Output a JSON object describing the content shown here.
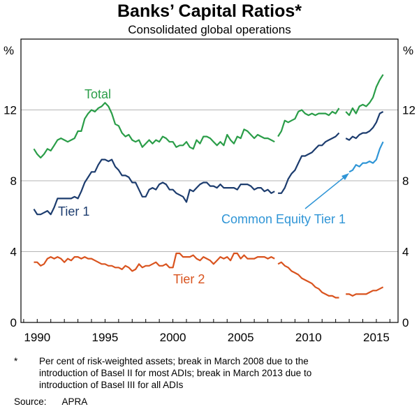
{
  "chart_data": {
    "type": "line",
    "title": "Banks’ Capital Ratios*",
    "subtitle": "Consolidated global operations",
    "ylabel_left": "%",
    "ylabel_right": "%",
    "ylim": [
      0,
      16
    ],
    "yticks": [
      0,
      4,
      8,
      12
    ],
    "xlim": [
      1988.8,
      2016.6
    ],
    "xticks": [
      1990,
      1995,
      2000,
      2005,
      2010,
      2015
    ],
    "colors": {
      "total": "#2a9d48",
      "tier1": "#1c3c6e",
      "cet1": "#2f95d6",
      "tier2": "#d9531e",
      "grid": "#b5b5b5"
    },
    "series": [
      {
        "name": "Total",
        "segments": [
          {
            "x": [
              1989.75,
              1990,
              1990.25,
              1990.5,
              1990.75,
              1991,
              1991.25,
              1991.5,
              1991.75,
              1992,
              1992.25,
              1992.5,
              1992.75,
              1993,
              1993.25,
              1993.5,
              1993.75,
              1994,
              1994.25,
              1994.5,
              1994.75,
              1995,
              1995.25,
              1995.5,
              1995.75,
              1996,
              1996.25,
              1996.5,
              1996.75,
              1997,
              1997.25,
              1997.5,
              1997.75,
              1998,
              1998.25,
              1998.5,
              1998.75,
              1999,
              1999.25,
              1999.5,
              1999.75,
              2000,
              2000.25,
              2000.5,
              2000.75,
              2001,
              2001.25,
              2001.5,
              2001.75,
              2002,
              2002.25,
              2002.5,
              2002.75,
              2003,
              2003.25,
              2003.5,
              2003.75,
              2004,
              2004.25,
              2004.5,
              2004.75,
              2005,
              2005.25,
              2005.5,
              2005.75,
              2006,
              2006.25,
              2006.5,
              2006.75,
              2007,
              2007.25,
              2007.5
            ],
            "y": [
              9.8,
              9.5,
              9.3,
              9.5,
              9.8,
              9.7,
              10.0,
              10.3,
              10.4,
              10.3,
              10.2,
              10.3,
              10.4,
              10.8,
              10.8,
              11.5,
              11.8,
              12.0,
              11.9,
              12.1,
              12.2,
              12.4,
              12.2,
              11.8,
              11.2,
              11.1,
              10.7,
              10.5,
              10.6,
              10.3,
              10.2,
              10.3,
              9.9,
              10.1,
              10.3,
              10.1,
              10.3,
              10.2,
              10.5,
              10.4,
              10.2,
              10.2,
              9.9,
              10.0,
              10.0,
              10.2,
              9.9,
              9.8,
              10.3,
              10.1,
              10.5,
              10.5,
              10.4,
              10.2,
              10.0,
              10.2,
              10.0,
              10.6,
              10.3,
              10.1,
              10.5,
              10.4,
              10.9,
              10.8,
              10.6,
              10.4,
              10.6,
              10.5,
              10.4,
              10.4,
              10.3,
              10.2
            ]
          },
          {
            "x": [
              2007.75,
              2008,
              2008.25,
              2008.5,
              2008.75,
              2009,
              2009.25,
              2009.5,
              2009.75,
              2010,
              2010.25,
              2010.5,
              2010.75,
              2011,
              2011.25,
              2011.5,
              2011.75,
              2012,
              2012.25
            ],
            "y": [
              10.5,
              10.8,
              11.4,
              11.3,
              11.4,
              11.5,
              11.9,
              12.0,
              11.8,
              11.7,
              11.8,
              11.7,
              11.8,
              11.8,
              11.8,
              11.7,
              11.9,
              11.8,
              12.1
            ]
          },
          {
            "x": [
              2012.75,
              2013,
              2013.25,
              2013.5,
              2013.75,
              2014,
              2014.25,
              2014.5,
              2014.75,
              2015,
              2015.25,
              2015.5
            ],
            "y": [
              11.9,
              11.7,
              12.1,
              11.8,
              12.2,
              12.3,
              12.2,
              12.4,
              12.7,
              13.3,
              13.7,
              14.0
            ]
          }
        ]
      },
      {
        "name": "Tier 1",
        "segments": [
          {
            "x": [
              1989.75,
              1990,
              1990.25,
              1990.5,
              1990.75,
              1991,
              1991.25,
              1991.5,
              1991.75,
              1992,
              1992.25,
              1992.5,
              1992.75,
              1993,
              1993.25,
              1993.5,
              1993.75,
              1994,
              1994.25,
              1994.5,
              1994.75,
              1995,
              1995.25,
              1995.5,
              1995.75,
              1996,
              1996.25,
              1996.5,
              1996.75,
              1997,
              1997.25,
              1997.5,
              1997.75,
              1998,
              1998.25,
              1998.5,
              1998.75,
              1999,
              1999.25,
              1999.5,
              1999.75,
              2000,
              2000.25,
              2000.5,
              2000.75,
              2001,
              2001.25,
              2001.5,
              2001.75,
              2002,
              2002.25,
              2002.5,
              2002.75,
              2003,
              2003.25,
              2003.5,
              2003.75,
              2004,
              2004.25,
              2004.5,
              2004.75,
              2005,
              2005.25,
              2005.5,
              2005.75,
              2006,
              2006.25,
              2006.5,
              2006.75,
              2007,
              2007.25,
              2007.5
            ],
            "y": [
              6.4,
              6.1,
              6.1,
              6.2,
              6.3,
              6.1,
              6.5,
              7.0,
              7.0,
              7.0,
              7.0,
              7.0,
              7.1,
              7.0,
              7.4,
              7.9,
              8.2,
              8.5,
              8.5,
              8.9,
              9.2,
              9.2,
              9.1,
              9.2,
              8.8,
              8.6,
              8.3,
              8.3,
              8.2,
              7.9,
              7.9,
              7.5,
              7.1,
              7.1,
              7.5,
              7.6,
              7.5,
              7.8,
              7.9,
              7.8,
              7.5,
              7.5,
              7.3,
              7.2,
              7.1,
              6.8,
              7.5,
              7.4,
              7.6,
              7.8,
              7.9,
              7.9,
              7.7,
              7.7,
              7.6,
              7.8,
              7.6,
              7.6,
              7.6,
              7.6,
              7.5,
              7.8,
              7.8,
              7.8,
              7.7,
              7.5,
              7.6,
              7.6,
              7.4,
              7.5,
              7.3,
              7.4
            ]
          },
          {
            "x": [
              2007.75,
              2008,
              2008.25,
              2008.5,
              2008.75,
              2009,
              2009.25,
              2009.5,
              2009.75,
              2010,
              2010.25,
              2010.5,
              2010.75,
              2011,
              2011.25,
              2011.5,
              2011.75,
              2012,
              2012.25
            ],
            "y": [
              7.3,
              7.3,
              7.6,
              8.1,
              8.4,
              8.6,
              9.0,
              9.4,
              9.4,
              9.5,
              9.6,
              9.8,
              10.0,
              10.0,
              10.2,
              10.3,
              10.4,
              10.5,
              10.7
            ]
          },
          {
            "x": [
              2012.75,
              2013,
              2013.25,
              2013.5,
              2013.75,
              2014,
              2014.25,
              2014.5,
              2014.75,
              2015,
              2015.25,
              2015.5
            ],
            "y": [
              10.4,
              10.3,
              10.5,
              10.4,
              10.6,
              10.7,
              10.7,
              10.8,
              11.0,
              11.3,
              11.8,
              11.9
            ]
          }
        ]
      },
      {
        "name": "Common Equity Tier 1",
        "segments": [
          {
            "x": [
              2013.0,
              2013.25,
              2013.5,
              2013.75,
              2014,
              2014.25,
              2014.5,
              2014.75,
              2015,
              2015.25,
              2015.5
            ],
            "y": [
              8.5,
              8.6,
              8.9,
              8.8,
              9.0,
              9.0,
              9.1,
              9.0,
              9.2,
              9.8,
              10.2
            ]
          }
        ]
      },
      {
        "name": "Tier 2",
        "segments": [
          {
            "x": [
              1989.75,
              1990,
              1990.25,
              1990.5,
              1990.75,
              1991,
              1991.25,
              1991.5,
              1991.75,
              1992,
              1992.25,
              1992.5,
              1992.75,
              1993,
              1993.25,
              1993.5,
              1993.75,
              1994,
              1994.25,
              1994.5,
              1994.75,
              1995,
              1995.25,
              1995.5,
              1995.75,
              1996,
              1996.25,
              1996.5,
              1996.75,
              1997,
              1997.25,
              1997.5,
              1997.75,
              1998,
              1998.25,
              1998.5,
              1998.75,
              1999,
              1999.25,
              1999.5,
              1999.75,
              2000,
              2000.25,
              2000.5,
              2000.75,
              2001,
              2001.25,
              2001.5,
              2001.75,
              2002,
              2002.25,
              2002.5,
              2002.75,
              2003,
              2003.25,
              2003.5,
              2003.75,
              2004,
              2004.25,
              2004.5,
              2004.75,
              2005,
              2005.25,
              2005.5,
              2005.75,
              2006,
              2006.25,
              2006.5,
              2006.75,
              2007,
              2007.25,
              2007.5
            ],
            "y": [
              3.4,
              3.4,
              3.2,
              3.3,
              3.6,
              3.7,
              3.6,
              3.7,
              3.6,
              3.4,
              3.6,
              3.5,
              3.7,
              3.7,
              3.6,
              3.7,
              3.6,
              3.6,
              3.5,
              3.4,
              3.3,
              3.3,
              3.2,
              3.2,
              3.1,
              3.1,
              3.0,
              3.2,
              3.1,
              2.9,
              3.0,
              3.3,
              3.1,
              3.2,
              3.2,
              3.3,
              3.4,
              3.2,
              3.2,
              3.3,
              3.1,
              3.1,
              3.9,
              3.9,
              3.7,
              3.7,
              3.7,
              3.8,
              3.6,
              3.5,
              3.7,
              3.6,
              3.5,
              3.3,
              3.5,
              3.7,
              3.6,
              3.7,
              3.5,
              3.9,
              3.9,
              3.6,
              3.8,
              3.6,
              3.6,
              3.6,
              3.7,
              3.7,
              3.7,
              3.6,
              3.7,
              3.6
            ]
          },
          {
            "x": [
              2007.75,
              2008,
              2008.25,
              2008.5,
              2008.75,
              2009,
              2009.25,
              2009.5,
              2009.75,
              2010,
              2010.25,
              2010.5,
              2010.75,
              2011,
              2011.25,
              2011.5,
              2011.75,
              2012,
              2012.25
            ],
            "y": [
              3.3,
              3.4,
              3.2,
              3.1,
              2.9,
              2.8,
              2.7,
              2.5,
              2.4,
              2.3,
              2.2,
              2.0,
              1.9,
              1.7,
              1.6,
              1.5,
              1.5,
              1.4,
              1.4
            ]
          },
          {
            "x": [
              2012.75,
              2013,
              2013.25,
              2013.5,
              2013.75,
              2014,
              2014.25,
              2014.5,
              2014.75,
              2015,
              2015.25,
              2015.5
            ],
            "y": [
              1.6,
              1.6,
              1.5,
              1.6,
              1.6,
              1.6,
              1.6,
              1.7,
              1.8,
              1.8,
              1.9,
              2.0
            ]
          }
        ]
      }
    ],
    "annotations": {
      "total": "Total",
      "tier1": "Tier 1",
      "cet1": "Common Equity Tier 1",
      "tier2": "Tier 2"
    }
  },
  "footnote": {
    "marker": "*",
    "line1": "Per cent of risk-weighted assets; break in March 2008 due to the",
    "line2": "introduction of Basel II for most ADIs; break in March 2013 due to",
    "line3": "introduction of Basel III for all ADIs"
  },
  "source": {
    "label": "Source:",
    "value": "APRA"
  }
}
